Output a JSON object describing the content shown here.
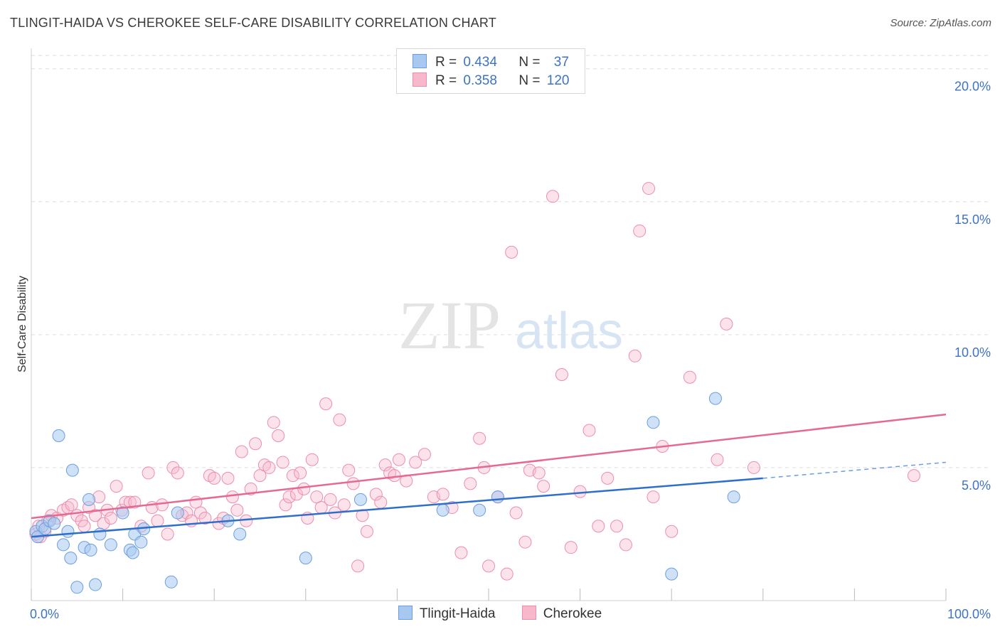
{
  "title": "TLINGIT-HAIDA VS CHEROKEE SELF-CARE DISABILITY CORRELATION CHART",
  "source": "Source: ZipAtlas.com",
  "watermark": {
    "zip": "ZIP",
    "atlas": "atlas"
  },
  "colors": {
    "blue_fill": "#a8c8f0",
    "blue_stroke": "#6a9ee0",
    "blue_line": "#2f6fcc",
    "pink_fill": "#f7b8cc",
    "pink_stroke": "#ec8eac",
    "pink_line": "#e46a92",
    "tick_text": "#3d72c4",
    "grid": "#dddddd"
  },
  "legend": {
    "rows": [
      {
        "r_label": "R =",
        "r_value": "0.434",
        "n_label": "N =",
        "n_value": "37"
      },
      {
        "r_label": "R =",
        "r_value": "0.358",
        "n_label": "N =",
        "n_value": "120"
      }
    ]
  },
  "bottom_legend": {
    "series1": "Tlingit-Haida",
    "series2": "Cherokee"
  },
  "chart_data": {
    "type": "scatter",
    "title": "TLINGIT-HAIDA VS CHEROKEE SELF-CARE DISABILITY CORRELATION CHART",
    "xlabel": "",
    "ylabel": "Self-Care Disability",
    "xlim": [
      0,
      100
    ],
    "ylim": [
      0,
      20.5
    ],
    "x_tick_labels": [
      "0.0%",
      "100.0%"
    ],
    "y_ticks": [
      5,
      10,
      15,
      20
    ],
    "y_tick_labels": [
      "5.0%",
      "10.0%",
      "15.0%",
      "20.0%"
    ],
    "grid": true,
    "legend_position": "top-center",
    "series": [
      {
        "name": "Tlingit-Haida",
        "color": "#a8c8f0",
        "points": [
          [
            0.5,
            2.6
          ],
          [
            0.7,
            2.4
          ],
          [
            1.2,
            2.8
          ],
          [
            1.5,
            2.7
          ],
          [
            2.0,
            3.0
          ],
          [
            2.5,
            2.9
          ],
          [
            3.0,
            6.2
          ],
          [
            3.5,
            2.1
          ],
          [
            4.0,
            2.6
          ],
          [
            4.3,
            1.6
          ],
          [
            4.5,
            4.9
          ],
          [
            5.0,
            0.5
          ],
          [
            5.8,
            2.0
          ],
          [
            6.3,
            3.8
          ],
          [
            6.5,
            1.9
          ],
          [
            7.0,
            0.6
          ],
          [
            7.5,
            2.5
          ],
          [
            8.7,
            2.1
          ],
          [
            10.0,
            3.3
          ],
          [
            10.8,
            1.9
          ],
          [
            11.1,
            1.8
          ],
          [
            11.3,
            2.5
          ],
          [
            12.0,
            2.2
          ],
          [
            12.3,
            2.7
          ],
          [
            15.3,
            0.7
          ],
          [
            16.0,
            3.3
          ],
          [
            21.5,
            3.0
          ],
          [
            22.8,
            2.5
          ],
          [
            30.0,
            1.6
          ],
          [
            36.0,
            3.8
          ],
          [
            45.0,
            3.4
          ],
          [
            49.0,
            3.4
          ],
          [
            51.0,
            3.9
          ],
          [
            68.0,
            6.7
          ],
          [
            70.0,
            1.0
          ],
          [
            74.8,
            7.6
          ],
          [
            76.8,
            3.9
          ]
        ],
        "trend": {
          "x": [
            0,
            80
          ],
          "y": [
            2.4,
            4.6
          ]
        },
        "trend_dashed": {
          "x": [
            80,
            100
          ],
          "y": [
            4.6,
            5.2
          ]
        }
      },
      {
        "name": "Cherokee",
        "color": "#f7b8cc",
        "points": [
          [
            0.5,
            2.5
          ],
          [
            0.8,
            2.8
          ],
          [
            1.0,
            2.4
          ],
          [
            1.5,
            2.6
          ],
          [
            1.8,
            3.0
          ],
          [
            2.2,
            3.2
          ],
          [
            2.8,
            3.1
          ],
          [
            3.5,
            3.4
          ],
          [
            4.0,
            3.5
          ],
          [
            4.4,
            3.6
          ],
          [
            5.0,
            3.2
          ],
          [
            5.5,
            3.0
          ],
          [
            5.8,
            2.8
          ],
          [
            6.3,
            3.5
          ],
          [
            7.0,
            3.2
          ],
          [
            7.4,
            3.9
          ],
          [
            7.9,
            2.9
          ],
          [
            8.3,
            3.4
          ],
          [
            8.7,
            3.1
          ],
          [
            9.3,
            4.3
          ],
          [
            9.9,
            3.4
          ],
          [
            10.3,
            3.7
          ],
          [
            10.8,
            3.7
          ],
          [
            11.3,
            3.7
          ],
          [
            12.0,
            2.8
          ],
          [
            12.8,
            4.8
          ],
          [
            13.2,
            3.5
          ],
          [
            13.8,
            3.0
          ],
          [
            14.3,
            3.6
          ],
          [
            14.9,
            2.5
          ],
          [
            15.5,
            5.0
          ],
          [
            16.0,
            4.8
          ],
          [
            16.5,
            3.2
          ],
          [
            17.0,
            3.3
          ],
          [
            17.5,
            3.0
          ],
          [
            18.0,
            3.7
          ],
          [
            18.5,
            3.3
          ],
          [
            19.0,
            3.1
          ],
          [
            19.5,
            4.7
          ],
          [
            20.0,
            4.6
          ],
          [
            20.5,
            2.9
          ],
          [
            21.0,
            3.1
          ],
          [
            21.5,
            4.6
          ],
          [
            22.0,
            3.9
          ],
          [
            22.5,
            3.4
          ],
          [
            23.0,
            5.6
          ],
          [
            23.5,
            3.0
          ],
          [
            24.0,
            4.2
          ],
          [
            24.5,
            5.9
          ],
          [
            25.0,
            4.7
          ],
          [
            25.5,
            5.1
          ],
          [
            26.0,
            5.0
          ],
          [
            26.5,
            6.7
          ],
          [
            27.0,
            6.2
          ],
          [
            27.5,
            5.2
          ],
          [
            27.8,
            3.6
          ],
          [
            28.2,
            3.9
          ],
          [
            28.6,
            4.7
          ],
          [
            29.0,
            4.0
          ],
          [
            29.4,
            4.8
          ],
          [
            29.8,
            4.2
          ],
          [
            30.2,
            3.1
          ],
          [
            30.7,
            5.3
          ],
          [
            31.2,
            3.9
          ],
          [
            31.7,
            3.5
          ],
          [
            32.2,
            7.4
          ],
          [
            32.7,
            3.8
          ],
          [
            33.2,
            3.3
          ],
          [
            33.7,
            6.8
          ],
          [
            34.2,
            3.6
          ],
          [
            34.7,
            4.9
          ],
          [
            35.2,
            4.4
          ],
          [
            35.7,
            1.3
          ],
          [
            36.2,
            3.2
          ],
          [
            36.7,
            2.6
          ],
          [
            37.7,
            4.0
          ],
          [
            38.2,
            3.7
          ],
          [
            38.7,
            5.1
          ],
          [
            39.2,
            4.8
          ],
          [
            39.7,
            4.7
          ],
          [
            40.2,
            5.3
          ],
          [
            41.0,
            4.5
          ],
          [
            42.0,
            5.2
          ],
          [
            43.0,
            5.5
          ],
          [
            44.0,
            3.9
          ],
          [
            45.0,
            4.0
          ],
          [
            46.0,
            3.5
          ],
          [
            47.0,
            1.8
          ],
          [
            48.0,
            4.4
          ],
          [
            49.0,
            6.1
          ],
          [
            49.5,
            5.0
          ],
          [
            50.0,
            1.3
          ],
          [
            51.0,
            3.9
          ],
          [
            52.0,
            1.0
          ],
          [
            52.5,
            13.1
          ],
          [
            53.0,
            3.3
          ],
          [
            54.0,
            2.2
          ],
          [
            54.5,
            4.9
          ],
          [
            55.5,
            4.8
          ],
          [
            56.0,
            4.3
          ],
          [
            57.0,
            15.2
          ],
          [
            58.0,
            8.5
          ],
          [
            59.0,
            2.0
          ],
          [
            60.0,
            4.1
          ],
          [
            61.0,
            6.4
          ],
          [
            62.0,
            2.8
          ],
          [
            63.0,
            4.6
          ],
          [
            64.0,
            2.8
          ],
          [
            65.0,
            2.1
          ],
          [
            66.0,
            9.2
          ],
          [
            66.5,
            13.9
          ],
          [
            67.5,
            15.5
          ],
          [
            68.0,
            3.9
          ],
          [
            69.0,
            5.8
          ],
          [
            70.0,
            2.6
          ],
          [
            72.0,
            8.4
          ],
          [
            75.0,
            5.3
          ],
          [
            76.0,
            10.4
          ],
          [
            79.0,
            5.0
          ],
          [
            96.5,
            4.7
          ]
        ],
        "trend": {
          "x": [
            0,
            100
          ],
          "y": [
            3.1,
            7.0
          ]
        }
      }
    ]
  }
}
